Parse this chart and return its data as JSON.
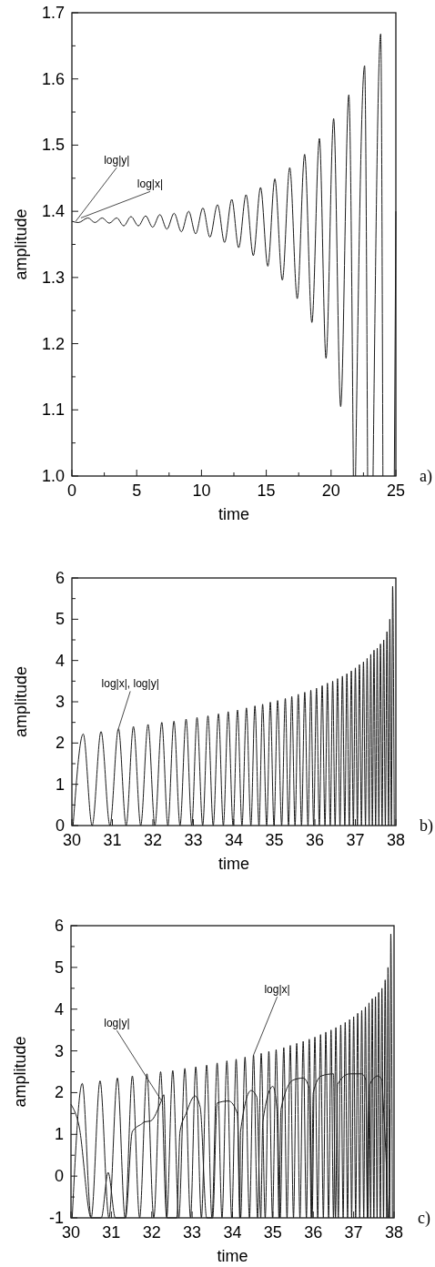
{
  "chart_data": [
    {
      "type": "line",
      "xlabel": "time",
      "ylabel": "amplitude",
      "xlim": [
        0,
        25
      ],
      "ylim": [
        1,
        1.7
      ],
      "xticks": [
        0,
        {
          "value": 2.5,
          "label": null
        },
        5,
        {
          "value": 7.5,
          "label": null
        },
        10,
        {
          "value": 12.5,
          "label": null
        },
        15,
        {
          "value": 17.5,
          "label": null
        },
        20,
        {
          "value": 22.5,
          "label": null
        },
        25
      ],
      "yticks": [
        {
          "value": 1,
          "label": "1.0"
        },
        {
          "value": 1.05,
          "label": null
        },
        1.1,
        {
          "value": 1.15,
          "label": null
        },
        1.2,
        {
          "value": 1.25,
          "label": null
        },
        1.3,
        {
          "value": 1.35,
          "label": null
        },
        1.4,
        {
          "value": 1.45,
          "label": null
        },
        1.5,
        {
          "value": 1.55,
          "label": null
        },
        1.6,
        {
          "value": 1.65,
          "label": null
        },
        1.7
      ],
      "series": [
        {
          "color": "#1a1a1a",
          "x": [
            0,
            0.5,
            1.24,
            1.78,
            2.34,
            2.88,
            3.46,
            4.0,
            4.56,
            5.13,
            5.69,
            6.23,
            6.79,
            7.33,
            7.89,
            8.45,
            9.01,
            9.55,
            10.11,
            10.65,
            11.24,
            11.78,
            12.34,
            12.87,
            13.44,
            14.0,
            14.56,
            15.12,
            15.66,
            16.24,
            16.81,
            17.39,
            17.96,
            18.52,
            19.1,
            19.61,
            20.2,
            20.74,
            21.37,
            21.72,
            21.8,
            21.89,
            22.59,
            22.82,
            23.0,
            23.24,
            23.83,
            24.0,
            24.3,
            24.88,
            25
          ],
          "values": [
            1.385,
            1.383,
            1.39,
            1.383,
            1.39,
            1.382,
            1.39,
            1.378,
            1.392,
            1.378,
            1.393,
            1.376,
            1.395,
            1.373,
            1.397,
            1.369,
            1.4,
            1.366,
            1.405,
            1.361,
            1.41,
            1.353,
            1.418,
            1.345,
            1.425,
            1.333,
            1.436,
            1.317,
            1.449,
            1.296,
            1.466,
            1.268,
            1.486,
            1.232,
            1.51,
            1.178,
            1.54,
            1.105,
            1.576,
            1.0,
            null,
            1.0,
            1.62,
            1.0,
            null,
            1.0,
            1.668,
            1.0,
            null,
            1.0,
            1.4
          ]
        }
      ],
      "annotations": [
        {
          "text": "log|y|",
          "x": 0.3,
          "y": 1.385
        },
        {
          "text": "log|x|",
          "x": 0.7,
          "y": 1.39
        },
        "a)"
      ]
    },
    {
      "type": "line",
      "xlabel": "time",
      "ylabel": "amplitude",
      "xlim": [
        30,
        38
      ],
      "ylim": [
        0,
        6
      ],
      "xticks": [
        30,
        31,
        32,
        33,
        34,
        35,
        36,
        37,
        38
      ],
      "yticks": [
        0,
        {
          "value": 0.5,
          "label": null
        },
        1,
        {
          "value": 1.5,
          "label": null
        },
        2,
        {
          "value": 2.5,
          "label": null
        },
        3,
        {
          "value": 3.5,
          "label": null
        },
        4,
        {
          "value": 4.5,
          "label": null
        },
        5,
        {
          "value": 5.5,
          "label": null
        },
        6
      ],
      "series": [
        {
          "color": "#1a1a1a",
          "x": [
            30.03,
            30.28,
            30.5,
            30.72,
            30.94,
            31.15,
            31.34,
            31.52,
            31.7,
            31.88,
            32.05,
            32.22,
            32.37,
            32.52,
            32.67,
            32.82,
            32.96,
            33.09,
            33.23,
            33.36,
            33.49,
            33.62,
            33.74,
            33.86,
            33.98,
            34.09,
            34.2,
            34.31,
            34.42,
            34.52,
            34.62,
            34.71,
            34.81,
            34.9,
            34.99,
            35.08,
            35.18,
            35.27,
            35.35,
            35.43,
            35.51,
            35.59,
            35.67,
            35.75,
            35.83,
            35.9,
            35.97,
            36.04,
            36.11,
            36.18,
            36.25,
            36.31,
            36.38,
            36.44,
            36.5,
            36.56,
            36.62,
            36.68,
            36.74,
            36.79,
            36.85,
            36.9,
            36.95,
            37.0,
            37.05,
            37.1,
            37.15,
            37.2,
            37.25,
            37.29,
            37.34,
            37.38,
            37.42,
            37.46,
            37.5,
            37.54,
            37.58,
            37.62,
            37.66,
            37.7,
            37.74,
            37.78,
            37.82,
            37.85,
            37.89,
            37.92,
            37.96
          ],
          "values": [
            0,
            2.22,
            0,
            2.28,
            0,
            2.35,
            0,
            2.4,
            0,
            2.45,
            0,
            2.5,
            0,
            2.53,
            0,
            2.58,
            0,
            2.62,
            0,
            2.66,
            0,
            2.71,
            0,
            2.76,
            0,
            2.8,
            0,
            2.85,
            0,
            2.9,
            0,
            2.94,
            0,
            2.99,
            0,
            3.03,
            0,
            3.08,
            0,
            3.13,
            0,
            3.18,
            0,
            3.23,
            0,
            3.28,
            0,
            3.33,
            0,
            3.39,
            0,
            3.45,
            0,
            3.5,
            0,
            3.56,
            0,
            3.62,
            0,
            3.68,
            0,
            3.75,
            0,
            3.82,
            0,
            3.9,
            0,
            3.97,
            0,
            4.05,
            0,
            4.15,
            0,
            4.25,
            0,
            4.3,
            0,
            4.4,
            0,
            4.5,
            0,
            4.7,
            0,
            5.0,
            0,
            5.8,
            0
          ]
        }
      ],
      "annotations": [
        {
          "text": "log|x|, log|y|",
          "x": 31.15,
          "y": 2.35
        },
        "b)"
      ]
    },
    {
      "type": "line",
      "xlabel": "time",
      "ylabel": "amplitude",
      "xlim": [
        30,
        38
      ],
      "ylim": [
        -1,
        6
      ],
      "xticks": [
        30,
        31,
        32,
        33,
        34,
        35,
        36,
        37,
        38
      ],
      "yticks": [
        -1,
        {
          "value": -0.5,
          "label": null
        },
        0,
        {
          "value": 0.5,
          "label": null
        },
        1,
        {
          "value": 1.5,
          "label": null
        },
        2,
        {
          "value": 2.5,
          "label": null
        },
        3,
        {
          "value": 3.5,
          "label": null
        },
        4,
        {
          "value": 4.5,
          "label": null
        },
        5,
        {
          "value": 5.5,
          "label": null
        },
        6
      ],
      "series": [
        {
          "color": "#1a1a1a",
          "x": [
            30.03,
            30.28,
            30.5,
            30.72,
            30.94,
            31.15,
            31.34,
            31.52,
            31.7,
            31.88,
            32.05,
            32.22,
            32.37,
            32.52,
            32.67,
            32.82,
            32.96,
            33.09,
            33.23,
            33.36,
            33.49,
            33.62,
            33.74,
            33.86,
            33.98,
            34.09,
            34.2,
            34.31,
            34.42,
            34.52,
            34.62,
            34.71,
            34.81,
            34.9,
            34.99,
            35.08,
            35.18,
            35.27,
            35.35,
            35.43,
            35.51,
            35.59,
            35.67,
            35.75,
            35.83,
            35.9,
            35.97,
            36.04,
            36.11,
            36.18,
            36.25,
            36.31,
            36.38,
            36.44,
            36.5,
            36.56,
            36.62,
            36.68,
            36.74,
            36.79,
            36.85,
            36.9,
            36.95,
            37.0,
            37.05,
            37.1,
            37.15,
            37.2,
            37.25,
            37.29,
            37.34,
            37.38,
            37.42,
            37.46,
            37.5,
            37.54,
            37.58,
            37.62,
            37.66,
            37.7,
            37.74,
            37.78,
            37.82,
            37.85,
            37.89,
            37.92,
            37.96
          ],
          "values": [
            -1,
            2.22,
            -1,
            2.28,
            -1,
            2.35,
            -1,
            2.4,
            -1,
            2.45,
            -1,
            2.5,
            -1,
            2.53,
            -1,
            2.58,
            -1,
            2.62,
            -1,
            2.66,
            -1,
            2.71,
            -1,
            2.76,
            -1,
            2.8,
            -1,
            2.85,
            -1,
            2.9,
            -1,
            2.94,
            -1,
            2.99,
            -1,
            3.03,
            -1,
            3.08,
            -1,
            3.13,
            -1,
            3.18,
            -1,
            3.23,
            -1,
            3.28,
            -1,
            3.33,
            -1,
            3.39,
            -1,
            3.45,
            -1,
            3.5,
            -1,
            3.56,
            -1,
            3.62,
            -1,
            3.68,
            -1,
            3.75,
            -1,
            3.82,
            -1,
            3.9,
            -1,
            3.97,
            -1,
            4.05,
            -1,
            4.15,
            -1,
            4.25,
            -1,
            4.3,
            -1,
            4.4,
            -1,
            4.5,
            -1,
            4.7,
            -1,
            5.0,
            -1,
            5.8,
            -1
          ]
        },
        {
          "color": "#1a1a1a",
          "x": [
            30.0,
            30.2,
            30.5,
            30.75,
            30.92,
            31.1,
            31.35,
            31.52,
            31.75,
            31.82,
            31.97,
            32.24,
            32.3,
            32.38,
            32.62,
            32.7,
            32.85,
            33.07,
            33.2,
            33.36,
            33.51,
            33.62,
            33.9,
            34.12,
            34.18,
            34.2,
            34.46,
            34.6,
            34.7,
            34.75,
            35.0,
            35.1,
            35.15,
            35.2,
            35.5,
            35.75,
            35.9,
            35.95,
            36.0,
            36.2,
            36.5,
            36.55,
            36.6,
            36.9,
            37.2,
            37.3,
            37.35,
            37.4,
            37.6,
            37.7,
            37.73,
            37.8,
            37.86,
            37.9
          ],
          "values": [
            1.72,
            1.2,
            -1,
            -1,
            0.09,
            -1,
            -1,
            1.07,
            1.25,
            1.3,
            1.32,
            1.81,
            1.95,
            -1,
            -1,
            1.07,
            1.5,
            1.92,
            1.65,
            -1,
            -1,
            1.75,
            1.8,
            1.5,
            -1,
            1.07,
            2.05,
            1.9,
            -1,
            1.3,
            2.15,
            1.6,
            -1,
            1.6,
            2.3,
            2.35,
            2.1,
            -1,
            2.0,
            2.4,
            2.45,
            -1,
            2.2,
            2.45,
            2.45,
            2.3,
            -1,
            2.2,
            2.4,
            2.3,
            1.79,
            0.49,
            -1,
            1.6
          ]
        }
      ],
      "annotations": [
        {
          "text": "log|y|",
          "x": 32.24,
          "y": 1.81
        },
        {
          "text": "log|x|",
          "x": 34.52,
          "y": 2.9
        },
        "c)"
      ]
    }
  ]
}
